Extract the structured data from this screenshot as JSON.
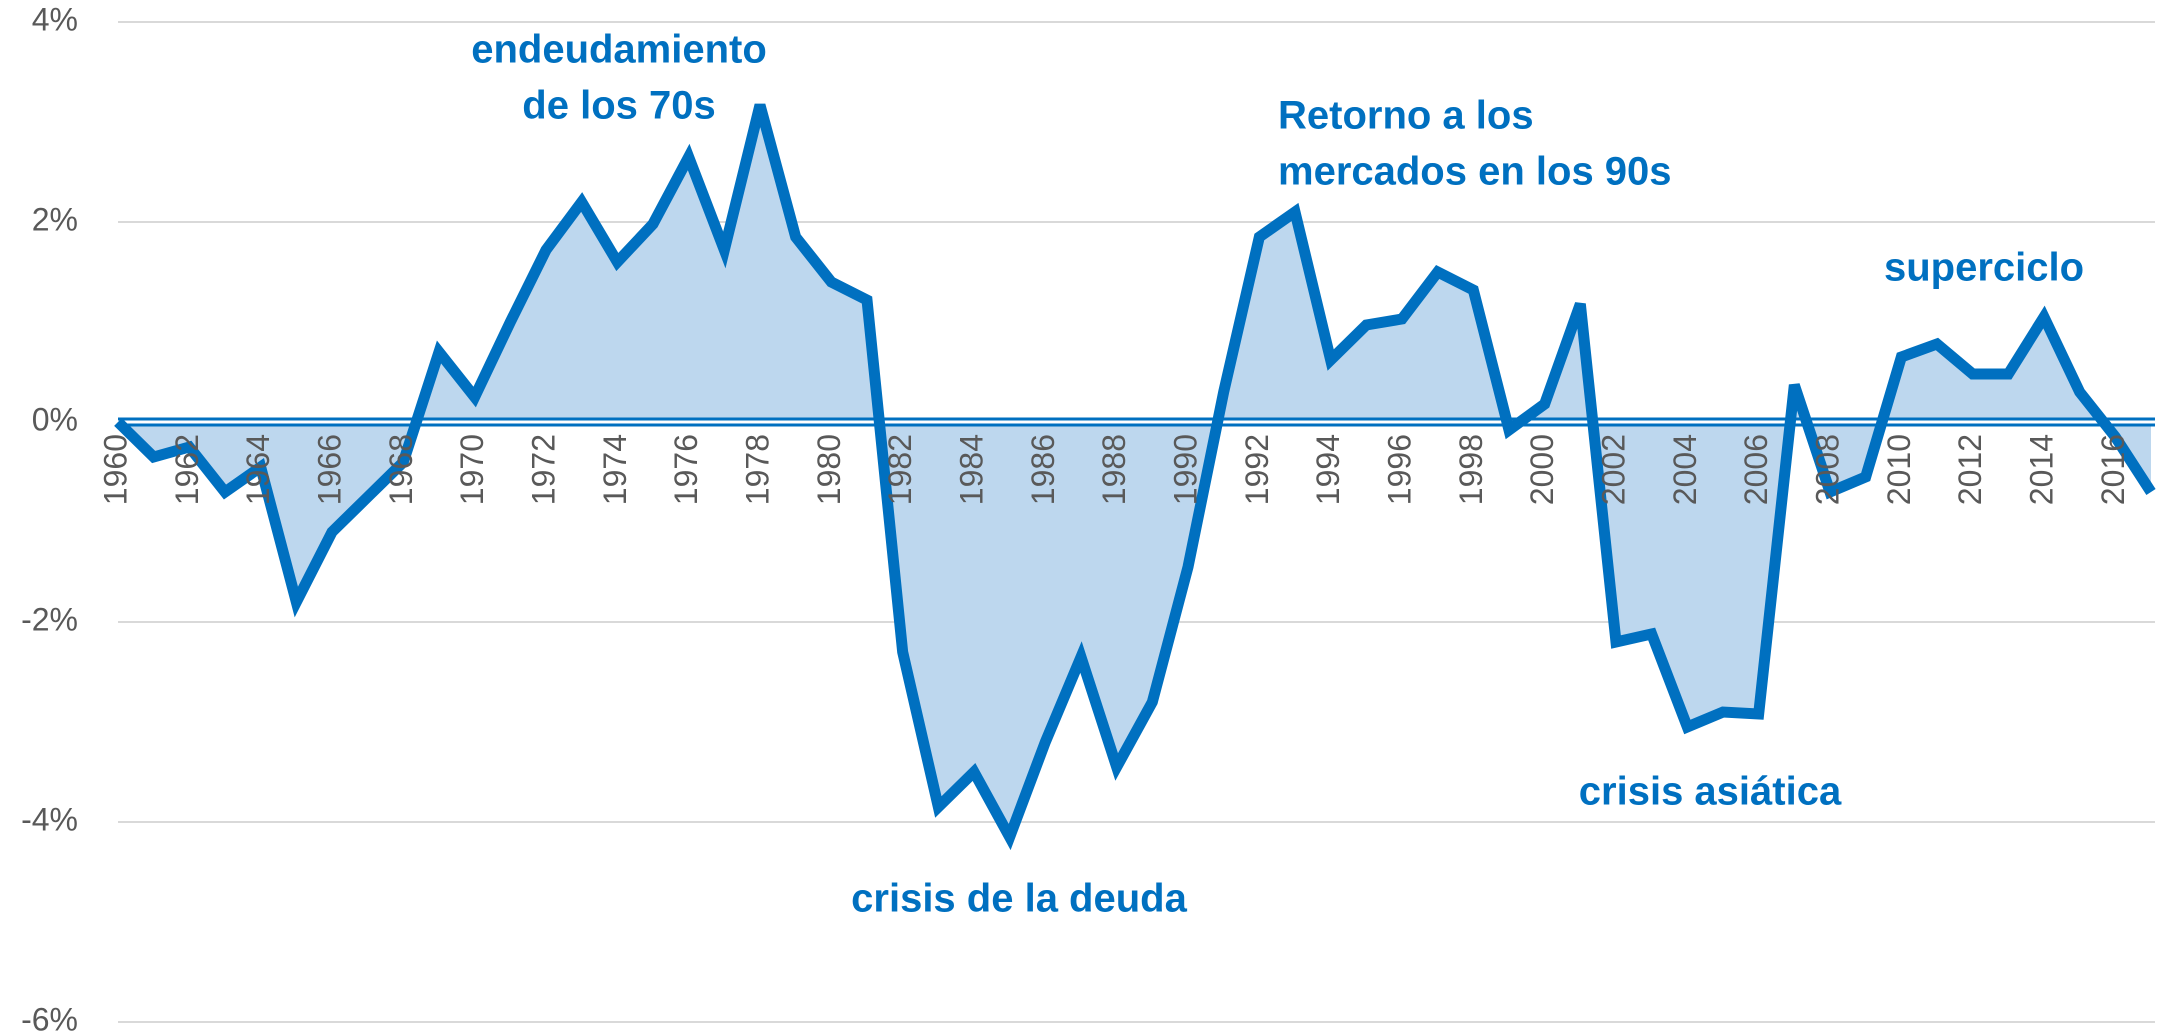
{
  "chart_data": {
    "type": "area",
    "x": [
      1960,
      1961,
      1962,
      1963,
      1964,
      1965,
      1966,
      1967,
      1968,
      1969,
      1970,
      1971,
      1972,
      1973,
      1974,
      1975,
      1976,
      1977,
      1978,
      1979,
      1980,
      1981,
      1982,
      1983,
      1984,
      1985,
      1986,
      1987,
      1988,
      1989,
      1990,
      1991,
      1992,
      1993,
      1994,
      1995,
      1996,
      1997,
      1998,
      1999,
      2000,
      2001,
      2002,
      2003,
      2004,
      2005,
      2006,
      2007,
      2008,
      2009,
      2010,
      2011,
      2012,
      2013,
      2014,
      2015,
      2016,
      2017
    ],
    "values": [
      0.0,
      -0.35,
      -0.25,
      -0.7,
      -0.45,
      -1.8,
      -1.1,
      -0.75,
      -0.4,
      0.7,
      0.25,
      1.0,
      1.72,
      2.2,
      1.6,
      1.98,
      2.65,
      1.72,
      3.17,
      1.85,
      1.4,
      1.22,
      -2.3,
      -3.85,
      -3.5,
      -4.15,
      -3.2,
      -2.35,
      -3.45,
      -2.8,
      -1.45,
      0.3,
      1.85,
      2.1,
      0.62,
      0.97,
      1.03,
      1.5,
      1.32,
      -0.08,
      0.18,
      1.18,
      -2.2,
      -2.12,
      -3.05,
      -2.9,
      -2.92,
      0.37,
      -0.7,
      -0.55,
      0.65,
      0.78,
      0.48,
      0.48,
      1.05,
      0.3,
      -0.15,
      -0.7
    ],
    "color": "#0070c0",
    "fill_color": "#bdd7ee",
    "xlim": [
      1960,
      2017
    ],
    "xticks": [
      1960,
      1962,
      1964,
      1966,
      1968,
      1970,
      1972,
      1974,
      1976,
      1978,
      1980,
      1982,
      1984,
      1986,
      1988,
      1990,
      1992,
      1994,
      1996,
      1998,
      2000,
      2002,
      2004,
      2006,
      2008,
      2010,
      2012,
      2014,
      2016
    ],
    "ylim": [
      -6,
      4
    ],
    "yticks": [
      {
        "value": -6,
        "label": "-6%"
      },
      {
        "value": -4,
        "label": "-4%"
      },
      {
        "value": -2,
        "label": "-2%"
      },
      {
        "value": 0,
        "label": "0%"
      },
      {
        "value": 2,
        "label": "2%"
      },
      {
        "value": 4,
        "label": "4%"
      }
    ],
    "grid": true,
    "annotations": [
      [
        "endeudamiento",
        "de los 70s"
      ],
      [
        "Retorno a los",
        "mercados en los 90s"
      ],
      [
        "superciclo"
      ],
      [
        "crisis asiática"
      ],
      [
        "crisis de la deuda"
      ]
    ]
  }
}
